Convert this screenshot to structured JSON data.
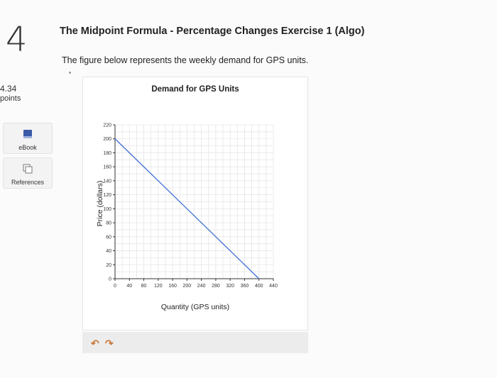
{
  "question": {
    "number": "4",
    "points_value": "4.34",
    "points_label": "points"
  },
  "sidebar": {
    "items": [
      {
        "label": "eBook",
        "icon": "book-icon"
      },
      {
        "label": "References",
        "icon": "references-icon"
      }
    ]
  },
  "header": {
    "title": "The Midpoint Formula - Percentage Changes Exercise 1 (Algo)",
    "subtitle": "The figure below represents the weekly demand for GPS units."
  },
  "toolbar": {
    "icons": [
      "undo-icon",
      "redo-icon"
    ]
  },
  "colors": {
    "line": "#3f6fd6",
    "grid": "#e6e6e6",
    "icon_accent": "#c8793b",
    "ebook_icon": "#3b5ba8"
  },
  "chart_data": {
    "type": "line",
    "title": "Demand for GPS Units",
    "xlabel": "Quantity (GPS units)",
    "ylabel": "Price (dollars)",
    "xlim": [
      0,
      440
    ],
    "ylim": [
      0,
      220
    ],
    "x_ticks": [
      0,
      40,
      80,
      120,
      160,
      200,
      240,
      280,
      320,
      360,
      400,
      440
    ],
    "y_ticks": [
      0,
      20,
      40,
      60,
      80,
      100,
      120,
      140,
      160,
      180,
      200,
      220
    ],
    "grid": true,
    "series": [
      {
        "x": [
          0,
          400
        ],
        "y": [
          200,
          0
        ]
      }
    ]
  }
}
